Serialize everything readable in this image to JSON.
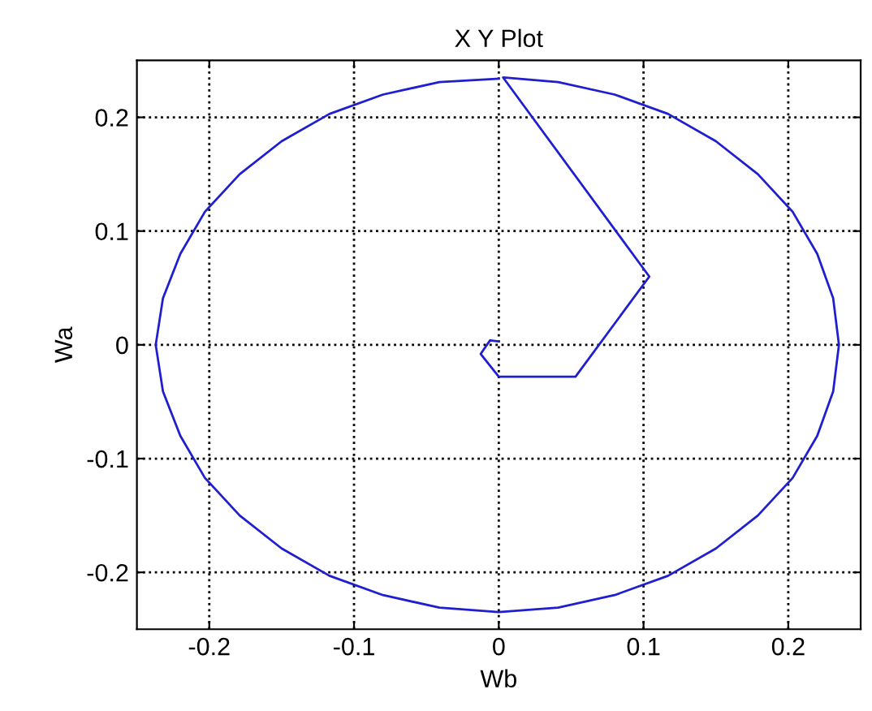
{
  "chart_data": {
    "type": "line",
    "title": "X Y Plot",
    "xlabel": "Wb",
    "ylabel": "Wa",
    "xlim": [
      -0.25,
      0.25
    ],
    "ylim": [
      -0.25,
      0.25
    ],
    "xticks": [
      -0.2,
      -0.1,
      0,
      0.1,
      0.2
    ],
    "yticks": [
      -0.2,
      -0.1,
      0,
      0.1,
      0.2
    ],
    "grid": true,
    "line_style": "solid",
    "marker": "none",
    "series": [
      {
        "color": "#1f1fd0",
        "x": [
          0,
          -0.006,
          -0.0125,
          0,
          0.053,
          0.104,
          0.003,
          0.041,
          0.08,
          0.117,
          0.15,
          0.179,
          0.203,
          0.22,
          0.231,
          0.235,
          0.231,
          0.22,
          0.203,
          0.179,
          0.15,
          0.117,
          0.08,
          0.041,
          0,
          -0.041,
          -0.08,
          -0.117,
          -0.15,
          -0.179,
          -0.203,
          -0.22,
          -0.232,
          -0.237,
          -0.232,
          -0.22,
          -0.203,
          -0.179,
          -0.15,
          -0.117,
          -0.08,
          -0.041,
          0
        ],
        "values": [
          0.003,
          0.004,
          -0.008,
          -0.028,
          -0.028,
          0.06,
          0.235,
          0.231,
          0.22,
          0.203,
          0.179,
          0.15,
          0.117,
          0.08,
          0.041,
          0,
          -0.041,
          -0.08,
          -0.117,
          -0.15,
          -0.179,
          -0.203,
          -0.22,
          -0.231,
          -0.235,
          -0.231,
          -0.22,
          -0.203,
          -0.179,
          -0.15,
          -0.117,
          -0.08,
          -0.041,
          0,
          0.041,
          0.08,
          0.117,
          0.15,
          0.179,
          0.203,
          0.22,
          0.231,
          0.234
        ]
      }
    ]
  }
}
